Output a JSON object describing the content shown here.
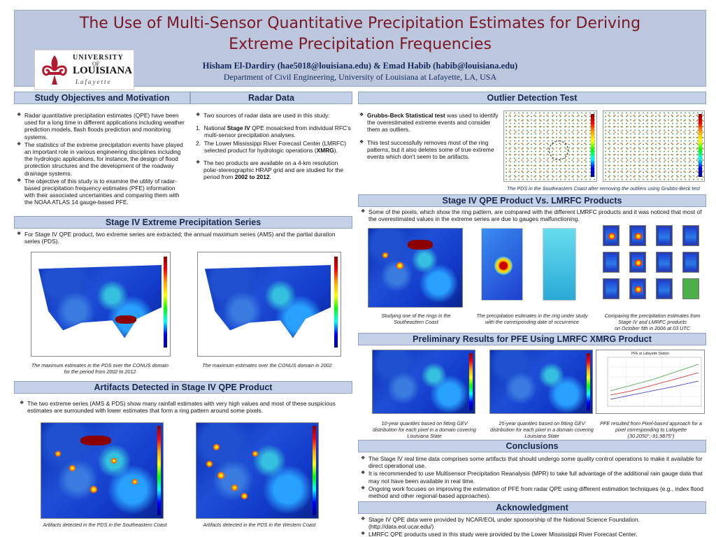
{
  "header": {
    "title": "The Use of Multi-Sensor Quantitative Precipitation Estimates for Deriving Extreme Precipitation Frequencies",
    "title_line1": "The Use of Multi-Sensor Quantitative Precipitation Estimates for Deriving",
    "title_line2": "Extreme Precipitation Frequencies",
    "authors": "Hisham El-Dardiry (hae5018@louisiana.edu) & Emad Habib (habib@louisiana.edu)",
    "department": "Department of Civil Engineering, University of Louisiana at Lafayette, LA, USA",
    "logo": {
      "line1": "UNIVERSITY",
      "line2": "OF",
      "line3": "LOUISIANA",
      "line4": "Lafayette",
      "icon": "fleur-de-lis-icon"
    },
    "bg": "#bcc7dd",
    "title_color": "#7a1727"
  },
  "sections": {
    "objectives": {
      "title": "Study Objectives and Motivation",
      "bullets": [
        "Radar quantitative precipitation estimates (QPE) have been used for a long time in different applications including weather prediction models, flash floods prediction and monitoring systems.",
        "The statistics of the extreme precipitation events have played an important role in various engineering disciplines including the hydrologic applications, for instance, the design of flood protection structures and the development of the roadway drainage systems.",
        "The objective of this study is to examine the utility of radar-based precipitation frequency estimates (PFE) information with their associated uncertainties and comparing them with the NOAA ATLAS 14 gauge-based PFE."
      ]
    },
    "radar": {
      "title": "Radar Data",
      "intro": "Two sources of radar data are used in this study:",
      "item1": "National Stage IV QPE mosaicked from individual RFC's multi-sensor precipitation analyses.",
      "item1_parts": {
        "a": "National ",
        "b": "Stage IV",
        "c": " QPE mosaicked from individual RFC's multi-sensor precipitation analyses."
      },
      "item2_parts": {
        "a": "The Lower Mississippi River Forecast Center (LMRFC) selected product for hydrologic operations (",
        "b": "XMRG",
        "c": ")."
      },
      "item2": "The Lower Mississippi River Forecast Center (LMRFC) selected product for hydrologic operations (XMRG).",
      "bullet2_parts": {
        "a": "The two products are available on a 4-km resolution polar-stereographic HRAP grid and are studied for the period from ",
        "b": "2002 to 2012",
        "c": "."
      },
      "bullet2": "The two products are available on a 4-km resolution polar-stereographic HRAP grid and are studied for the period from 2002 to 2012."
    },
    "outlier": {
      "title": "Outlier Detection Test",
      "bullet1_bold": "Grubbs-Beck Statistical test",
      "bullet1_rest": " was used to identify the overestimated extreme events and consider them as outliers.",
      "bullet2": "This test successfully removes most of the ring patterns, but it also deletes some of true extreme events which don't seem to be artifacts.",
      "caption": "The PDS  in the Southeastern Coast after removing the outliers using Grubbs-Beck test"
    },
    "extreme": {
      "title": "Stage IV Extreme Precipitation Series",
      "bullet": "For Stage IV QPE product, two extreme series are extracted; the annual maximum series (AMS) and the partial duration series (PDS).",
      "caption1": "The maximum estimates in the PDS over the CONUS domain for the period from 2002 to 2012",
      "caption2": "The maximum estimates over the CONUS domain in 2002"
    },
    "artifacts": {
      "title": "Artifacts Detected in Stage IV QPE Product",
      "bullet": "The two extreme series (AMS & PDS) show many rainfall estimates with very high values and most of these suspicious estimates are surrounded with lower estimates that form a ring pattern around some pixels.",
      "caption1": "Artifacts detected in the PDS in the Southeastern Coast",
      "caption2": "Artifacts detected in the PDS in the Western Coast"
    },
    "compare": {
      "title": "Stage IV QPE  Product Vs. LMRFC Products",
      "bullet": "Some of the pixels, which show the ring pattern, are compared with the different LMRFC products and it was noticed that most of the overestimated values in the extreme series are due to gauges malfunctioning.",
      "caption1": "Studying one of the rings in the Southeastern Coast",
      "caption2": "The precipitation estimates in the ring under study with the corresponding date of occurrence",
      "caption3_a": "Comparing the precipitation estimates from Stage IV and LMRFC products",
      "caption3_b": "on October 5th in 2006 at 03 UTC"
    },
    "prelim": {
      "title": "Preliminary Results for PFE Using LMRFC XMRG Product",
      "caption1": "10-year quantiles  based on fitting GEV distribution for each pixel in a domain covering Louisiana  State",
      "caption2": "25-year quantiles  based on fitting GEV distribution for each pixel in a domain covering Louisiana  State",
      "caption3": "PFE resulted from Pixel-based approach for a pixel corresponding to Lafayette (30.2050°,-91.9875°)",
      "plot_title": "PFE at Lafayette Station"
    },
    "conclusions": {
      "title": "Conclusions",
      "bullets": [
        "The Stage IV  real time data comprises some artifacts that should undergo some quality control operations to make it available for direct operational use.",
        "It is recommended to use Multisensor Precipitation Reanalysis (MPR) to take full advantage of the additional rain gauge data that may not have been available in real time.",
        "Ongoing work focuses on improving the estimation of PFE from radar QPE using different estimation techniques (e.g., index flood method and other regional-based approaches)."
      ]
    },
    "ack": {
      "title": "Acknowledgment",
      "bullets": [
        "Stage IV QPE data were provided by NCAR/EOL under sponsorship of the National Science Foundation. (http://data.eol.ucar.edu/)",
        "LMRFC QPE products used in this study were provided by the Lower Mississippi River Forecast Center."
      ]
    }
  },
  "colors": {
    "section_bar": "#c5d1e6",
    "section_text": "#17284e",
    "rain_low": "#1a3fbf",
    "rain_high": "#8b0000"
  }
}
